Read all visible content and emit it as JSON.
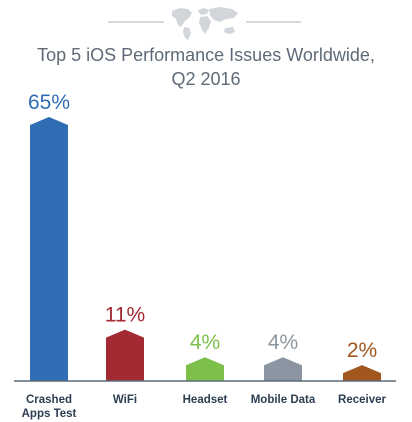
{
  "chart_data": {
    "type": "bar",
    "title_lines": [
      "Top 5 iOS Performance Issues Worldwide,",
      "Q2 2016"
    ],
    "categories": [
      [
        "Crashed",
        "Apps Test"
      ],
      [
        "WiFi"
      ],
      [
        "Headset"
      ],
      [
        "Mobile Data"
      ],
      [
        "Receiver"
      ]
    ],
    "values": [
      65,
      11,
      4,
      4,
      2
    ],
    "value_labels": [
      "65%",
      "11%",
      "4%",
      "4%",
      "2%"
    ],
    "colors": [
      "#2f6db5",
      "#a32a33",
      "#7cc04b",
      "#8b96a2",
      "#a0561c"
    ],
    "label_colors": [
      "#2f6db5",
      "#a32a33",
      "#7cc04b",
      "#8b96a2",
      "#a0561c"
    ],
    "axis_color": "#5a6a78",
    "decoration": {
      "icon": "world-map-icon",
      "line_color": "#cccccc",
      "icon_color": "#d2d6da"
    },
    "grid": false,
    "legend": "none"
  }
}
